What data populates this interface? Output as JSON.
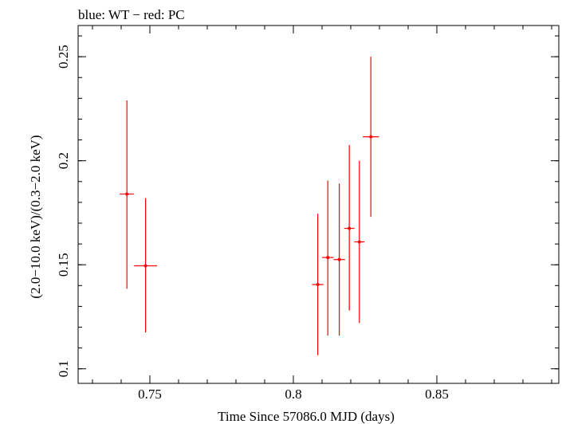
{
  "chart_data": {
    "type": "scatter",
    "title": "blue: WT − red: PC",
    "xlabel": "Time Since 57086.0 MJD (days)",
    "ylabel": "(2.0−10.0 keV)/(0.3−2.0 keV)",
    "xlim": [
      0.725,
      0.8925
    ],
    "ylim": [
      0.093,
      0.265
    ],
    "xticks": [
      {
        "value": 0.75,
        "label": "0.75"
      },
      {
        "value": 0.8,
        "label": "0.8"
      },
      {
        "value": 0.85,
        "label": "0.85"
      }
    ],
    "yticks": [
      {
        "value": 0.1,
        "label": "0.1"
      },
      {
        "value": 0.15,
        "label": "0.15"
      },
      {
        "value": 0.2,
        "label": "0.2"
      },
      {
        "value": 0.25,
        "label": "0.25"
      }
    ],
    "x_minor_step": 0.01,
    "y_minor_step": 0.01,
    "grid": false,
    "series": [
      {
        "color": "#ff0000",
        "points": [
          {
            "x": 0.742,
            "xerr": 0.0025,
            "y": 0.184,
            "ylo": 0.1385,
            "yhi": 0.229
          },
          {
            "x": 0.7485,
            "xerr": 0.004,
            "y": 0.1495,
            "ylo": 0.1175,
            "yhi": 0.182
          },
          {
            "x": 0.8085,
            "xerr": 0.002,
            "y": 0.1405,
            "ylo": 0.1065,
            "yhi": 0.1745
          },
          {
            "x": 0.812,
            "xerr": 0.002,
            "y": 0.1535,
            "ylo": 0.116,
            "yhi": 0.1905
          },
          {
            "x": 0.816,
            "xerr": 0.002,
            "y": 0.1525,
            "ylo": 0.116,
            "yhi": 0.189
          },
          {
            "x": 0.8195,
            "xerr": 0.0018,
            "y": 0.1675,
            "ylo": 0.128,
            "yhi": 0.2075
          },
          {
            "x": 0.823,
            "xerr": 0.0018,
            "y": 0.161,
            "ylo": 0.122,
            "yhi": 0.2
          },
          {
            "x": 0.827,
            "xerr": 0.0028,
            "y": 0.2115,
            "ylo": 0.173,
            "yhi": 0.25
          }
        ]
      }
    ]
  }
}
